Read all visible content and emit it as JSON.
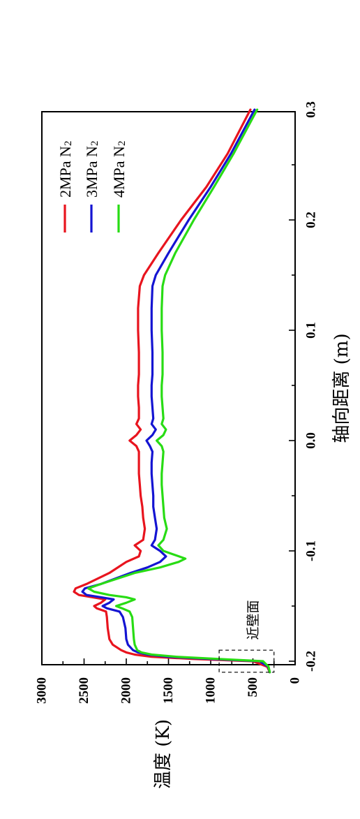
{
  "chart_data": {
    "type": "line",
    "orientation": "rotated-90-counterclockwise",
    "xlabel": "轴向距离 (m)",
    "ylabel": "温度 (K)",
    "xlim": [
      -0.21,
      0.3
    ],
    "ylim": [
      0,
      3000
    ],
    "x_ticks": [
      "-0.2",
      "-0.1",
      "0.0",
      "0.1",
      "0.2",
      "0.3"
    ],
    "y_ticks": [
      "0",
      "500",
      "1000",
      "1500",
      "2000",
      "2500",
      "3000"
    ],
    "legend_position": "top-right",
    "annotation": {
      "text": "近壁面",
      "x_range": [
        -0.21,
        -0.19
      ],
      "y_range": [
        250,
        900
      ]
    },
    "series": [
      {
        "name": "2MPa N",
        "subscript": "2",
        "color": "#e8141e",
        "points": [
          [
            -0.21,
            300
          ],
          [
            -0.205,
            330
          ],
          [
            -0.2,
            500
          ],
          [
            -0.198,
            1200
          ],
          [
            -0.196,
            1700
          ],
          [
            -0.194,
            1900
          ],
          [
            -0.192,
            2000
          ],
          [
            -0.19,
            2060
          ],
          [
            -0.185,
            2160
          ],
          [
            -0.18,
            2200
          ],
          [
            -0.17,
            2220
          ],
          [
            -0.16,
            2230
          ],
          [
            -0.155,
            2240
          ],
          [
            -0.152,
            2350
          ],
          [
            -0.15,
            2380
          ],
          [
            -0.147,
            2300
          ],
          [
            -0.144,
            2250
          ],
          [
            -0.142,
            2400
          ],
          [
            -0.14,
            2560
          ],
          [
            -0.137,
            2620
          ],
          [
            -0.134,
            2600
          ],
          [
            -0.13,
            2470
          ],
          [
            -0.12,
            2200
          ],
          [
            -0.11,
            2000
          ],
          [
            -0.105,
            1850
          ],
          [
            -0.1,
            1830
          ],
          [
            -0.095,
            1900
          ],
          [
            -0.09,
            1800
          ],
          [
            -0.08,
            1780
          ],
          [
            -0.07,
            1800
          ],
          [
            -0.06,
            1810
          ],
          [
            -0.05,
            1830
          ],
          [
            -0.04,
            1840
          ],
          [
            -0.03,
            1850
          ],
          [
            -0.02,
            1850
          ],
          [
            -0.01,
            1850
          ],
          [
            -0.005,
            1880
          ],
          [
            0.0,
            1960
          ],
          [
            0.005,
            1880
          ],
          [
            0.01,
            1830
          ],
          [
            0.015,
            1880
          ],
          [
            0.02,
            1850
          ],
          [
            0.03,
            1850
          ],
          [
            0.04,
            1860
          ],
          [
            0.05,
            1860
          ],
          [
            0.06,
            1850
          ],
          [
            0.08,
            1850
          ],
          [
            0.1,
            1860
          ],
          [
            0.12,
            1860
          ],
          [
            0.14,
            1840
          ],
          [
            0.15,
            1790
          ],
          [
            0.17,
            1620
          ],
          [
            0.2,
            1350
          ],
          [
            0.23,
            1050
          ],
          [
            0.26,
            800
          ],
          [
            0.3,
            530
          ]
        ]
      },
      {
        "name": "3MPa N",
        "subscript": "2",
        "color": "#1414d2",
        "points": [
          [
            -0.21,
            300
          ],
          [
            -0.205,
            320
          ],
          [
            -0.2,
            420
          ],
          [
            -0.198,
            1000
          ],
          [
            -0.196,
            1500
          ],
          [
            -0.194,
            1750
          ],
          [
            -0.192,
            1860
          ],
          [
            -0.19,
            1920
          ],
          [
            -0.185,
            1980
          ],
          [
            -0.18,
            2000
          ],
          [
            -0.17,
            2010
          ],
          [
            -0.16,
            2040
          ],
          [
            -0.155,
            2080
          ],
          [
            -0.152,
            2230
          ],
          [
            -0.15,
            2280
          ],
          [
            -0.147,
            2200
          ],
          [
            -0.144,
            2150
          ],
          [
            -0.142,
            2300
          ],
          [
            -0.14,
            2470
          ],
          [
            -0.137,
            2520
          ],
          [
            -0.134,
            2490
          ],
          [
            -0.13,
            2300
          ],
          [
            -0.12,
            1950
          ],
          [
            -0.115,
            1750
          ],
          [
            -0.11,
            1600
          ],
          [
            -0.105,
            1530
          ],
          [
            -0.1,
            1600
          ],
          [
            -0.095,
            1700
          ],
          [
            -0.09,
            1660
          ],
          [
            -0.08,
            1640
          ],
          [
            -0.07,
            1660
          ],
          [
            -0.06,
            1680
          ],
          [
            -0.05,
            1680
          ],
          [
            -0.04,
            1690
          ],
          [
            -0.03,
            1700
          ],
          [
            -0.02,
            1700
          ],
          [
            -0.01,
            1690
          ],
          [
            -0.005,
            1720
          ],
          [
            0.0,
            1760
          ],
          [
            0.005,
            1690
          ],
          [
            0.01,
            1650
          ],
          [
            0.015,
            1700
          ],
          [
            0.02,
            1680
          ],
          [
            0.03,
            1690
          ],
          [
            0.04,
            1700
          ],
          [
            0.05,
            1700
          ],
          [
            0.06,
            1690
          ],
          [
            0.08,
            1690
          ],
          [
            0.1,
            1700
          ],
          [
            0.12,
            1700
          ],
          [
            0.14,
            1690
          ],
          [
            0.15,
            1650
          ],
          [
            0.17,
            1500
          ],
          [
            0.2,
            1260
          ],
          [
            0.23,
            1000
          ],
          [
            0.26,
            760
          ],
          [
            0.3,
            480
          ]
        ]
      },
      {
        "name": "4MPa N",
        "subscript": "2",
        "color": "#28dc14",
        "points": [
          [
            -0.21,
            300
          ],
          [
            -0.205,
            315
          ],
          [
            -0.2,
            380
          ],
          [
            -0.198,
            900
          ],
          [
            -0.196,
            1400
          ],
          [
            -0.194,
            1700
          ],
          [
            -0.192,
            1820
          ],
          [
            -0.19,
            1870
          ],
          [
            -0.185,
            1900
          ],
          [
            -0.18,
            1910
          ],
          [
            -0.17,
            1920
          ],
          [
            -0.16,
            1930
          ],
          [
            -0.155,
            1960
          ],
          [
            -0.152,
            2050
          ],
          [
            -0.15,
            2120
          ],
          [
            -0.147,
            2000
          ],
          [
            -0.144,
            1900
          ],
          [
            -0.142,
            2000
          ],
          [
            -0.14,
            2200
          ],
          [
            -0.137,
            2380
          ],
          [
            -0.134,
            2450
          ],
          [
            -0.13,
            2300
          ],
          [
            -0.12,
            1900
          ],
          [
            -0.115,
            1600
          ],
          [
            -0.11,
            1380
          ],
          [
            -0.107,
            1300
          ],
          [
            -0.103,
            1450
          ],
          [
            -0.1,
            1560
          ],
          [
            -0.095,
            1620
          ],
          [
            -0.09,
            1560
          ],
          [
            -0.08,
            1520
          ],
          [
            -0.07,
            1550
          ],
          [
            -0.06,
            1560
          ],
          [
            -0.05,
            1570
          ],
          [
            -0.04,
            1580
          ],
          [
            -0.03,
            1580
          ],
          [
            -0.02,
            1570
          ],
          [
            -0.01,
            1560
          ],
          [
            -0.005,
            1580
          ],
          [
            0.0,
            1640
          ],
          [
            0.005,
            1560
          ],
          [
            0.01,
            1530
          ],
          [
            0.015,
            1580
          ],
          [
            0.02,
            1560
          ],
          [
            0.03,
            1570
          ],
          [
            0.04,
            1580
          ],
          [
            0.05,
            1580
          ],
          [
            0.06,
            1570
          ],
          [
            0.08,
            1570
          ],
          [
            0.1,
            1580
          ],
          [
            0.12,
            1580
          ],
          [
            0.14,
            1570
          ],
          [
            0.15,
            1540
          ],
          [
            0.17,
            1420
          ],
          [
            0.2,
            1200
          ],
          [
            0.23,
            960
          ],
          [
            0.26,
            730
          ],
          [
            0.3,
            450
          ]
        ]
      }
    ]
  }
}
